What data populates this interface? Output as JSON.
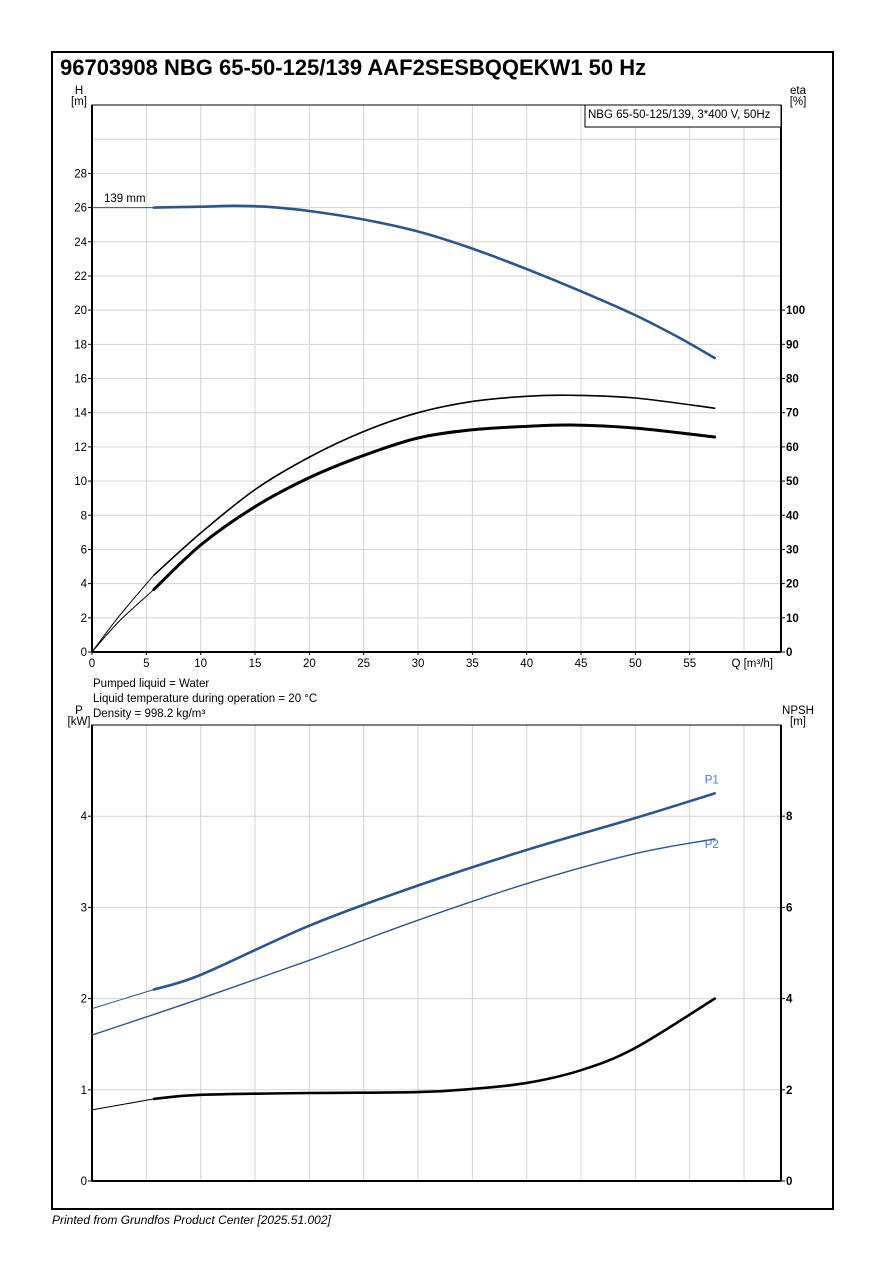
{
  "title": "96703908 NBG 65-50-125/139 AAF2SESBQQEKW1 50 Hz",
  "footer": "Printed from Grundfos Product Center [2025.51.002]",
  "info": {
    "liquid": "Pumped liquid = Water",
    "temperature": "Liquid temperature during operation = 20 °C",
    "density": "Density = 998.2 kg/m³"
  },
  "colors": {
    "blue": "#2b5590",
    "label_blue": "#4a7fc0",
    "black": "#000000",
    "grid": "#d3d3d3"
  },
  "chart_data": [
    {
      "type": "line",
      "legend": "NBG 65-50-125/139, 3*400 V, 50Hz",
      "legend_placement": "top-right",
      "xlabel": "Q [m³/h]",
      "ylabel_left": [
        "H",
        "[m]"
      ],
      "ylabel_right": [
        "eta",
        "[%]"
      ],
      "xlim": [
        0,
        63.4
      ],
      "ylim_left": [
        0,
        32
      ],
      "ylim_right": [
        0,
        160
      ],
      "x_ticks": [
        "0",
        "5",
        "10",
        "15",
        "20",
        "25",
        "30",
        "35",
        "40",
        "45",
        "50",
        "55"
      ],
      "y_ticks_left": [
        "0",
        "2",
        "4",
        "6",
        "8",
        "10",
        "12",
        "14",
        "16",
        "18",
        "20",
        "22",
        "24",
        "26",
        "28"
      ],
      "y_ticks_right": [
        "0",
        "10",
        "20",
        "30",
        "40",
        "50",
        "60",
        "70",
        "80",
        "90",
        "100"
      ],
      "annotation": "139 mm",
      "series": [
        {
          "name": "H",
          "axis": "left",
          "color": "blue",
          "thin": [
            [
              0,
              26
            ],
            [
              5.7,
              26
            ]
          ],
          "x": [
            5.7,
            10,
            13,
            16,
            20,
            25,
            30,
            35,
            40,
            45,
            50,
            54,
            57.3
          ],
          "y": [
            26,
            26.05,
            26.1,
            26.05,
            25.8,
            25.3,
            24.6,
            23.6,
            22.4,
            21.1,
            19.7,
            18.4,
            17.2
          ]
        },
        {
          "name": "eta pump",
          "axis": "right",
          "color": "black",
          "width": 1.6,
          "thin": [
            [
              0,
              0
            ],
            [
              2.5,
              10.5
            ],
            [
              5.7,
              22.5
            ]
          ],
          "x": [
            5.7,
            10,
            15,
            20,
            25,
            30,
            35,
            40,
            44,
            50,
            57.3
          ],
          "y": [
            22.5,
            34.8,
            47.5,
            57,
            64.5,
            70,
            73.3,
            74.8,
            75.1,
            74.3,
            71.3
          ]
        },
        {
          "name": "eta total",
          "axis": "right",
          "color": "black",
          "width": 3,
          "thin": [
            [
              0,
              0
            ],
            [
              2.5,
              9
            ],
            [
              5.7,
              18.3
            ]
          ],
          "x": [
            5.7,
            10,
            15,
            20,
            25,
            30,
            35,
            40,
            44,
            50,
            57.3
          ],
          "y": [
            18.3,
            31.3,
            42.5,
            51,
            57.5,
            62.6,
            65,
            66,
            66.4,
            65.5,
            62.9
          ]
        }
      ]
    },
    {
      "type": "line",
      "ylabel_left": [
        "P",
        "[kW]"
      ],
      "ylabel_right": [
        "NPSH",
        "[m]"
      ],
      "xlim": [
        0,
        63.4
      ],
      "ylim_left": [
        0,
        5
      ],
      "ylim_right": [
        0,
        10
      ],
      "y_ticks_left": [
        "0",
        "1",
        "2",
        "3",
        "4"
      ],
      "y_ticks_right": [
        "0",
        "2",
        "4",
        "6",
        "8"
      ],
      "series": [
        {
          "name": "P1",
          "axis": "left",
          "color": "blue",
          "width": 2.6,
          "label": "P1",
          "thin": [
            [
              0,
              1.89
            ],
            [
              5.7,
              2.1
            ]
          ],
          "x": [
            5.7,
            10,
            20,
            30,
            40,
            50,
            57.3
          ],
          "y": [
            2.1,
            2.26,
            2.8,
            3.24,
            3.63,
            3.98,
            4.25
          ]
        },
        {
          "name": "P2",
          "axis": "left",
          "color": "blue",
          "width": 1.4,
          "label": "P2",
          "thin": [],
          "x": [
            0,
            10,
            20,
            30,
            40,
            50,
            57.3
          ],
          "y": [
            1.6,
            2.0,
            2.42,
            2.86,
            3.26,
            3.59,
            3.75
          ]
        },
        {
          "name": "NPSH",
          "axis": "right",
          "color": "black",
          "width": 2.6,
          "thin": [
            [
              0,
              1.56
            ],
            [
              5.7,
              1.8
            ]
          ],
          "x": [
            5.7,
            10,
            20,
            30,
            35,
            40,
            45,
            50,
            57.3
          ],
          "y": [
            1.8,
            1.89,
            1.93,
            1.95,
            2.02,
            2.15,
            2.43,
            2.92,
            4.0
          ]
        }
      ]
    }
  ]
}
